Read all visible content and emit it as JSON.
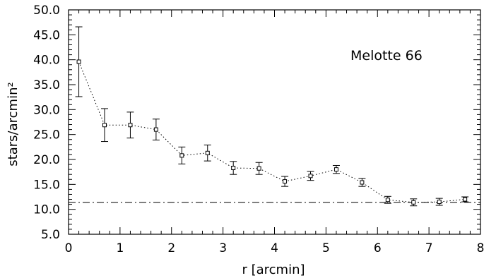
{
  "chart_data": {
    "type": "scatter",
    "annotation": "Melotte 66",
    "xlabel": "r [arcmin]",
    "ylabel": "stars/arcmin²",
    "xlim": [
      0,
      8
    ],
    "ylim": [
      5.0,
      50.0
    ],
    "x_ticks": [
      "0",
      "1",
      "2",
      "3",
      "4",
      "5",
      "6",
      "7",
      "8"
    ],
    "y_ticks": [
      "5.0",
      "10.0",
      "15.0",
      "20.0",
      "25.0",
      "30.0",
      "35.0",
      "40.0",
      "45.0",
      "50.0"
    ],
    "grid": false,
    "marker": "open-square",
    "connect": "dotted",
    "points": [
      {
        "x": 0.2,
        "y": 39.6,
        "err": 7.0
      },
      {
        "x": 0.7,
        "y": 26.9,
        "err": 3.3
      },
      {
        "x": 1.2,
        "y": 26.9,
        "err": 2.6
      },
      {
        "x": 1.7,
        "y": 26.0,
        "err": 2.1
      },
      {
        "x": 2.2,
        "y": 20.8,
        "err": 1.7
      },
      {
        "x": 2.7,
        "y": 21.3,
        "err": 1.6
      },
      {
        "x": 3.2,
        "y": 18.3,
        "err": 1.3
      },
      {
        "x": 3.7,
        "y": 18.2,
        "err": 1.2
      },
      {
        "x": 4.2,
        "y": 15.6,
        "err": 1.0
      },
      {
        "x": 4.7,
        "y": 16.7,
        "err": 0.9
      },
      {
        "x": 5.2,
        "y": 18.0,
        "err": 0.8
      },
      {
        "x": 5.7,
        "y": 15.4,
        "err": 0.8
      },
      {
        "x": 6.2,
        "y": 11.9,
        "err": 0.7
      },
      {
        "x": 6.7,
        "y": 11.4,
        "err": 0.7
      },
      {
        "x": 7.2,
        "y": 11.5,
        "err": 0.7
      },
      {
        "x": 7.7,
        "y": 12.0,
        "err": 0.5
      }
    ],
    "background_level": 11.4,
    "background_style": "dash-dot",
    "colors": {
      "ink": "#000000",
      "background": "#ffffff"
    }
  }
}
